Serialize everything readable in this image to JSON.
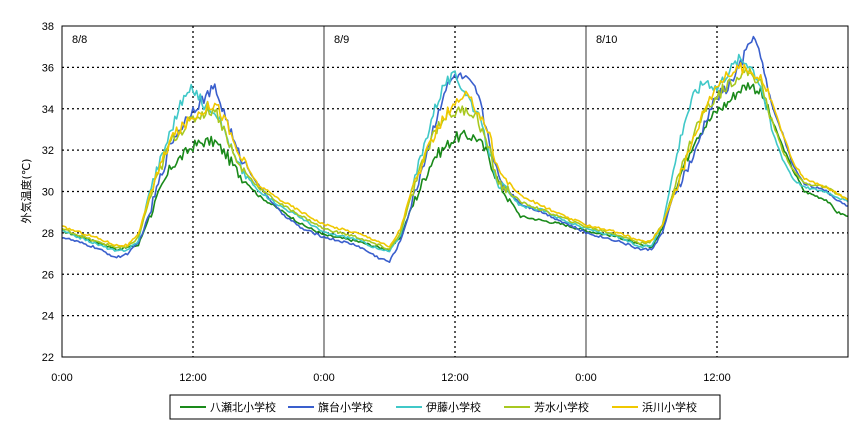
{
  "chart_data": {
    "type": "line",
    "ylabel": "外気温度(℃)",
    "ylim": [
      22,
      38
    ],
    "yticks": [
      "22",
      "24",
      "26",
      "28",
      "30",
      "32",
      "34",
      "36",
      "38"
    ],
    "x_range_hours": [
      0,
      72
    ],
    "xticks": [
      "0:00",
      "12:00",
      "0:00",
      "12:00",
      "0:00",
      "12:00"
    ],
    "day_labels": [
      "8/8",
      "8/9",
      "8/10"
    ],
    "grid": "dotted at 12:00 and even degrees, solid at 0:00",
    "legend": "bottom-center",
    "series": [
      {
        "name": "八瀬北小学校",
        "color": "#1a8a1a",
        "points": [
          [
            0,
            28.1
          ],
          [
            3,
            27.6
          ],
          [
            5,
            27.2
          ],
          [
            7,
            27.4
          ],
          [
            8,
            28.8
          ],
          [
            10,
            31.2
          ],
          [
            12,
            32.2
          ],
          [
            13,
            32.4
          ],
          [
            14,
            32.4
          ],
          [
            15,
            31.8
          ],
          [
            16,
            31.0
          ],
          [
            18,
            29.8
          ],
          [
            20,
            29.1
          ],
          [
            22,
            28.4
          ],
          [
            24,
            27.9
          ],
          [
            27,
            27.6
          ],
          [
            29,
            27.3
          ],
          [
            30,
            27.2
          ],
          [
            31,
            27.8
          ],
          [
            32,
            29.2
          ],
          [
            34,
            31.6
          ],
          [
            36,
            32.6
          ],
          [
            37,
            32.7
          ],
          [
            38,
            32.6
          ],
          [
            39,
            31.8
          ],
          [
            40,
            30.4
          ],
          [
            42,
            28.8
          ],
          [
            44,
            28.6
          ],
          [
            46,
            28.4
          ],
          [
            48,
            28.1
          ],
          [
            51,
            27.8
          ],
          [
            53,
            27.4
          ],
          [
            54,
            27.3
          ],
          [
            55,
            28.2
          ],
          [
            56,
            30.0
          ],
          [
            58,
            32.6
          ],
          [
            60,
            33.9
          ],
          [
            61,
            34.3
          ],
          [
            62,
            34.9
          ],
          [
            63,
            35.2
          ],
          [
            64,
            34.8
          ],
          [
            65,
            33.5
          ],
          [
            66,
            32.2
          ],
          [
            67,
            31.0
          ],
          [
            68,
            30.0
          ],
          [
            70,
            29.6
          ],
          [
            71,
            29.0
          ],
          [
            72,
            28.8
          ]
        ]
      },
      {
        "name": "旗台小学校",
        "color": "#3a5fcd",
        "points": [
          [
            0,
            27.8
          ],
          [
            3,
            27.3
          ],
          [
            5,
            26.8
          ],
          [
            6,
            27.0
          ],
          [
            7,
            27.5
          ],
          [
            8,
            28.9
          ],
          [
            10,
            32.4
          ],
          [
            12,
            34.0
          ],
          [
            13,
            34.5
          ],
          [
            14,
            35.0
          ],
          [
            15,
            33.6
          ],
          [
            16,
            32.0
          ],
          [
            18,
            30.3
          ],
          [
            20,
            29.0
          ],
          [
            22,
            28.2
          ],
          [
            24,
            27.8
          ],
          [
            27,
            27.4
          ],
          [
            29,
            26.8
          ],
          [
            30,
            26.6
          ],
          [
            31,
            27.6
          ],
          [
            32,
            29.3
          ],
          [
            34,
            33.0
          ],
          [
            35,
            34.8
          ],
          [
            36,
            35.6
          ],
          [
            37,
            35.4
          ],
          [
            38,
            34.8
          ],
          [
            39,
            32.8
          ],
          [
            40,
            30.6
          ],
          [
            42,
            29.4
          ],
          [
            44,
            29.0
          ],
          [
            46,
            28.5
          ],
          [
            48,
            28.0
          ],
          [
            51,
            27.6
          ],
          [
            53,
            27.2
          ],
          [
            54,
            27.2
          ],
          [
            55,
            28.0
          ],
          [
            56,
            29.8
          ],
          [
            58,
            31.8
          ],
          [
            59,
            33.5
          ],
          [
            60,
            34.6
          ],
          [
            61,
            35.0
          ],
          [
            62,
            36.0
          ],
          [
            63,
            37.1
          ],
          [
            63.5,
            37.6
          ],
          [
            64,
            36.4
          ],
          [
            65,
            34.2
          ],
          [
            66,
            32.8
          ],
          [
            67,
            31.2
          ],
          [
            68,
            30.4
          ],
          [
            70,
            30.0
          ],
          [
            71,
            29.6
          ],
          [
            72,
            29.3
          ]
        ]
      },
      {
        "name": "伊藤小学校",
        "color": "#40c8c8",
        "points": [
          [
            0,
            28.1
          ],
          [
            3,
            27.5
          ],
          [
            5,
            27.1
          ],
          [
            6,
            27.2
          ],
          [
            7,
            27.6
          ],
          [
            8,
            30.0
          ],
          [
            10,
            33.0
          ],
          [
            11,
            34.4
          ],
          [
            12,
            35.0
          ],
          [
            13,
            34.2
          ],
          [
            14,
            34.0
          ],
          [
            15,
            32.8
          ],
          [
            16,
            31.4
          ],
          [
            18,
            30.0
          ],
          [
            20,
            29.3
          ],
          [
            22,
            28.7
          ],
          [
            24,
            28.0
          ],
          [
            27,
            27.7
          ],
          [
            29,
            27.2
          ],
          [
            30,
            27.1
          ],
          [
            31,
            27.9
          ],
          [
            32,
            30.0
          ],
          [
            34,
            33.8
          ],
          [
            35,
            35.2
          ],
          [
            36,
            35.6
          ],
          [
            37,
            34.8
          ],
          [
            38,
            33.8
          ],
          [
            39,
            32.2
          ],
          [
            40,
            30.4
          ],
          [
            42,
            29.3
          ],
          [
            44,
            29.1
          ],
          [
            46,
            28.6
          ],
          [
            48,
            28.2
          ],
          [
            51,
            27.8
          ],
          [
            53,
            27.3
          ],
          [
            54,
            27.4
          ],
          [
            55,
            28.4
          ],
          [
            56,
            31.0
          ],
          [
            57,
            33.4
          ],
          [
            58,
            34.8
          ],
          [
            59,
            35.4
          ],
          [
            60,
            35.0
          ],
          [
            61,
            35.8
          ],
          [
            62,
            36.4
          ],
          [
            63,
            36.2
          ],
          [
            64,
            35.2
          ],
          [
            65,
            33.0
          ],
          [
            66,
            31.6
          ],
          [
            67,
            30.6
          ],
          [
            68,
            30.2
          ],
          [
            70,
            30.0
          ],
          [
            72,
            29.5
          ]
        ]
      },
      {
        "name": "芳水小学校",
        "color": "#a8c820",
        "points": [
          [
            0,
            28.2
          ],
          [
            3,
            27.6
          ],
          [
            5,
            27.3
          ],
          [
            6,
            27.3
          ],
          [
            7,
            27.8
          ],
          [
            8,
            29.6
          ],
          [
            10,
            32.5
          ],
          [
            12,
            33.5
          ],
          [
            13,
            33.8
          ],
          [
            14,
            34.0
          ],
          [
            15,
            32.8
          ],
          [
            16,
            31.4
          ],
          [
            18,
            30.2
          ],
          [
            20,
            29.4
          ],
          [
            22,
            28.8
          ],
          [
            24,
            28.2
          ],
          [
            27,
            27.8
          ],
          [
            29,
            27.4
          ],
          [
            30,
            27.2
          ],
          [
            31,
            28.0
          ],
          [
            32,
            29.8
          ],
          [
            34,
            32.8
          ],
          [
            35,
            33.6
          ],
          [
            36,
            33.8
          ],
          [
            37,
            34.0
          ],
          [
            38,
            33.6
          ],
          [
            39,
            32.2
          ],
          [
            40,
            30.4
          ],
          [
            42,
            29.5
          ],
          [
            44,
            29.1
          ],
          [
            46,
            28.7
          ],
          [
            48,
            28.3
          ],
          [
            51,
            27.9
          ],
          [
            53,
            27.5
          ],
          [
            54,
            27.6
          ],
          [
            55,
            28.4
          ],
          [
            56,
            30.0
          ],
          [
            58,
            33.0
          ],
          [
            59,
            34.0
          ],
          [
            60,
            34.6
          ],
          [
            61,
            35.2
          ],
          [
            62,
            35.6
          ],
          [
            63,
            35.8
          ],
          [
            64,
            35.2
          ],
          [
            65,
            33.5
          ],
          [
            66,
            32.0
          ],
          [
            67,
            31.0
          ],
          [
            68,
            30.4
          ],
          [
            70,
            30.2
          ],
          [
            72,
            29.6
          ]
        ]
      },
      {
        "name": "浜川小学校",
        "color": "#f0c800",
        "points": [
          [
            0,
            28.3
          ],
          [
            3,
            27.8
          ],
          [
            5,
            27.4
          ],
          [
            6,
            27.4
          ],
          [
            7,
            27.9
          ],
          [
            8,
            29.8
          ],
          [
            10,
            32.6
          ],
          [
            12,
            33.6
          ],
          [
            13,
            34.0
          ],
          [
            14,
            34.3
          ],
          [
            15,
            33.4
          ],
          [
            16,
            32.0
          ],
          [
            18,
            30.3
          ],
          [
            20,
            29.6
          ],
          [
            22,
            29.0
          ],
          [
            24,
            28.4
          ],
          [
            27,
            28.0
          ],
          [
            29,
            27.6
          ],
          [
            30,
            27.3
          ],
          [
            31,
            28.2
          ],
          [
            32,
            30.0
          ],
          [
            34,
            32.6
          ],
          [
            35,
            33.6
          ],
          [
            36,
            34.2
          ],
          [
            37,
            34.6
          ],
          [
            38,
            34.0
          ],
          [
            39,
            33.0
          ],
          [
            40,
            31.0
          ],
          [
            42,
            29.8
          ],
          [
            44,
            29.3
          ],
          [
            46,
            28.8
          ],
          [
            48,
            28.4
          ],
          [
            51,
            28.0
          ],
          [
            53,
            27.6
          ],
          [
            54,
            27.6
          ],
          [
            55,
            28.4
          ],
          [
            56,
            29.8
          ],
          [
            58,
            32.8
          ],
          [
            59,
            34.2
          ],
          [
            60,
            35.2
          ],
          [
            61,
            35.6
          ],
          [
            62,
            36.0
          ],
          [
            63,
            35.8
          ],
          [
            64,
            35.6
          ],
          [
            65,
            34.4
          ],
          [
            66,
            32.8
          ],
          [
            67,
            31.4
          ],
          [
            68,
            30.6
          ],
          [
            70,
            30.2
          ],
          [
            72,
            29.6
          ]
        ]
      }
    ]
  }
}
